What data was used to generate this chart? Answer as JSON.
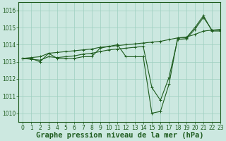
{
  "title": "Graphe pression niveau de la mer (hPa)",
  "background_color": "#cce8e0",
  "line_color": "#1e5c1e",
  "grid_color": "#9ecfbf",
  "xlim": [
    -0.5,
    23
  ],
  "ylim": [
    1009.5,
    1016.5
  ],
  "yticks": [
    1010,
    1011,
    1012,
    1013,
    1014,
    1015,
    1016
  ],
  "xtick_labels": [
    "0",
    "1",
    "2",
    "3",
    "4",
    "5",
    "6",
    "7",
    "8",
    "9",
    "10",
    "11",
    "12",
    "13",
    "14",
    "15",
    "16",
    "17",
    "18",
    "19",
    "20",
    "21",
    "22",
    "23"
  ],
  "series": [
    [
      1013.2,
      1013.2,
      1013.0,
      1013.5,
      1013.2,
      1013.2,
      1013.2,
      1013.3,
      1013.3,
      1013.8,
      1013.9,
      1014.0,
      1013.3,
      1013.3,
      1013.3,
      1010.0,
      1010.1,
      1011.7,
      1014.4,
      1014.4,
      1015.0,
      1015.7,
      1014.8,
      1014.8
    ],
    [
      1013.2,
      1013.15,
      1013.1,
      1013.3,
      1013.25,
      1013.3,
      1013.35,
      1013.45,
      1013.5,
      1013.6,
      1013.7,
      1013.75,
      1013.8,
      1013.85,
      1013.9,
      1011.5,
      1010.75,
      1012.1,
      1014.3,
      1014.35,
      1014.9,
      1015.6,
      1014.85,
      1014.85
    ],
    [
      1013.2,
      1013.25,
      1013.3,
      1013.5,
      1013.55,
      1013.6,
      1013.65,
      1013.7,
      1013.75,
      1013.85,
      1013.9,
      1013.95,
      1014.0,
      1014.05,
      1014.1,
      1014.15,
      1014.2,
      1014.3,
      1014.4,
      1014.45,
      1014.6,
      1014.8,
      1014.85,
      1014.9
    ]
  ],
  "marker": "+",
  "marker_size": 3,
  "line_width": 0.8,
  "title_fontsize": 7.5,
  "tick_fontsize": 5.5,
  "figsize": [
    3.2,
    2.0
  ],
  "dpi": 100
}
